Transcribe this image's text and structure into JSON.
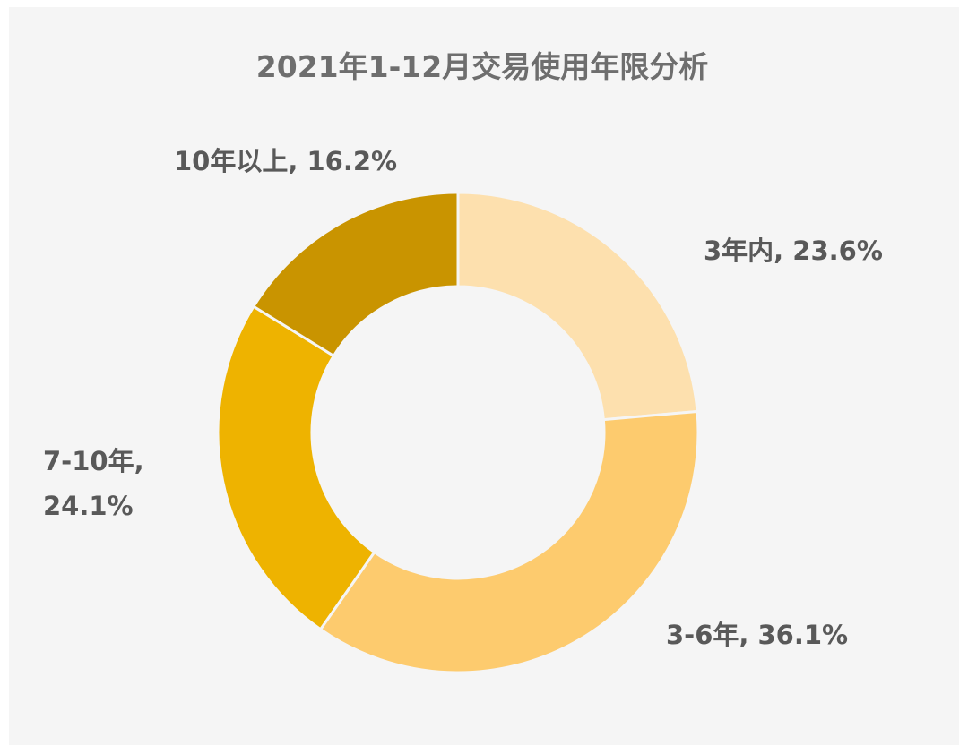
{
  "chart_data": {
    "type": "pie",
    "variant": "donut",
    "title": "2021年1-12月交易使用年限分析",
    "legend": "none",
    "categories": [
      "3年内",
      "3-6年",
      "7-10年",
      "10年以上"
    ],
    "values": [
      23.6,
      36.1,
      24.1,
      16.2
    ],
    "unit": "%",
    "colors": [
      "#fde0ae",
      "#fdcb6e",
      "#eeb300",
      "#c99400"
    ],
    "labels": [
      {
        "category": "3年内",
        "line1": "3年内, 23.6%",
        "line2": ""
      },
      {
        "category": "3-6年",
        "line1": "3-6年, 36.1%",
        "line2": ""
      },
      {
        "category": "7-10年",
        "line1": "7-10年,",
        "line2": "24.1%"
      },
      {
        "category": "10年以上",
        "line1": "10年以上, 16.2%",
        "line2": ""
      }
    ]
  }
}
